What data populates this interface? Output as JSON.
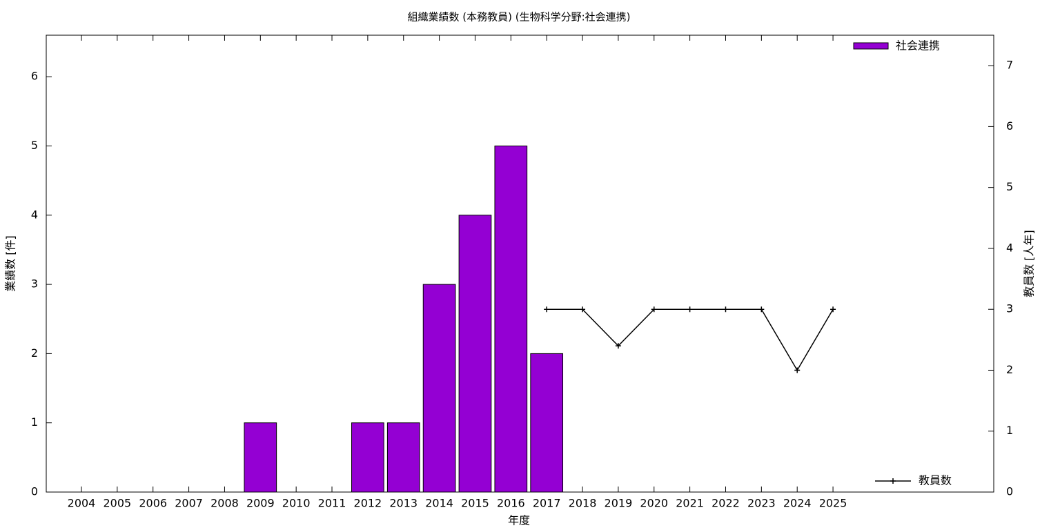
{
  "chart_data": {
    "type": "bar",
    "title": "組織業績数 (本務教員) (生物科学分野:社会連携)",
    "x_label": "年度",
    "y_label": "業績数 [件]",
    "y2_label": "教員数 [人年]",
    "categories": [
      "2004",
      "2005",
      "2006",
      "2007",
      "2008",
      "2009",
      "2010",
      "2011",
      "2012",
      "2013",
      "2014",
      "2015",
      "2016",
      "2017",
      "2018",
      "2019",
      "2020",
      "2021",
      "2022",
      "2023",
      "2024",
      "2025"
    ],
    "series": [
      {
        "name": "社会連携",
        "color": "#9400d3",
        "type": "bar",
        "values": [
          0,
          0,
          0,
          0,
          0,
          1,
          0,
          0,
          1,
          1,
          3,
          4,
          5,
          2,
          null,
          null,
          null,
          null,
          null,
          null,
          null,
          null
        ]
      },
      {
        "name": "教員数",
        "color": "#000000",
        "type": "line",
        "axis": "y2",
        "values": [
          null,
          null,
          null,
          null,
          null,
          null,
          null,
          null,
          null,
          null,
          null,
          null,
          null,
          3,
          3,
          2.4,
          3,
          3,
          3,
          3,
          2,
          3
        ]
      }
    ],
    "ylim": [
      0,
      6.6
    ],
    "yticks": [
      0,
      1,
      2,
      3,
      4,
      5,
      6
    ],
    "y2lim": [
      0,
      7.5
    ],
    "y2ticks": [
      0,
      1,
      2,
      3,
      4,
      5,
      6,
      7
    ],
    "legend": [
      "top-right",
      "bottom-right"
    ]
  }
}
